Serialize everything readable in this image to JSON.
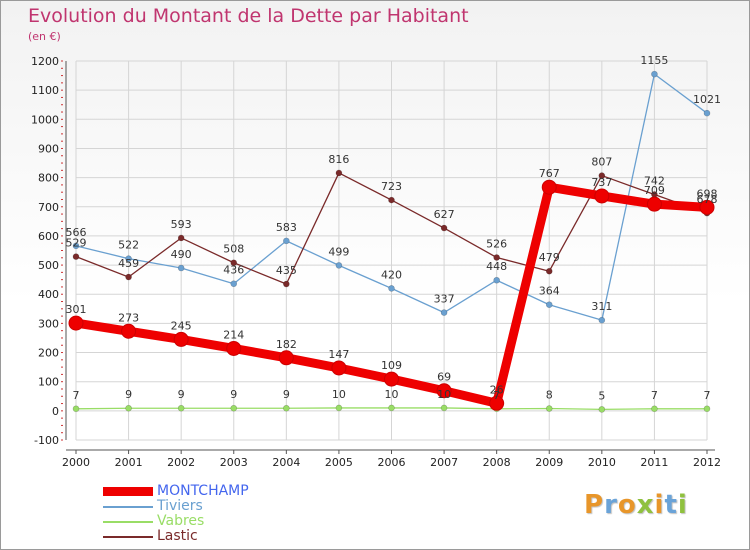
{
  "header": {
    "title": "Evolution du Montant de la Dette par Habitant",
    "subtitle": "(en €)"
  },
  "colors": {
    "title": "#c0356f",
    "grid": "#d5d5d5",
    "axis": "#555555"
  },
  "logo": {
    "text": "Proxiti",
    "letters": [
      {
        "ch": "P",
        "color": "#e8962a"
      },
      {
        "ch": "r",
        "color": "#6aa3d8"
      },
      {
        "ch": "o",
        "color": "#e8962a"
      },
      {
        "ch": "x",
        "color": "#8fc13e"
      },
      {
        "ch": "i",
        "color": "#e8962a"
      },
      {
        "ch": "t",
        "color": "#6aa3d8"
      },
      {
        "ch": "i",
        "color": "#8fc13e"
      }
    ]
  },
  "chart_data": {
    "type": "line",
    "title": "Evolution du Montant de la Dette par Habitant",
    "subtitle": "(en €)",
    "xlabel": "",
    "ylabel": "",
    "x": [
      "2000",
      "2001",
      "2002",
      "2003",
      "2004",
      "2005",
      "2006",
      "2007",
      "2008",
      "2009",
      "2010",
      "2011",
      "2012"
    ],
    "ylim": [
      -100,
      1200
    ],
    "yticks": [
      -100,
      0,
      100,
      200,
      300,
      400,
      500,
      600,
      700,
      800,
      900,
      1000,
      1100,
      1200
    ],
    "grid": true,
    "legend_position": "bottom-left",
    "series": [
      {
        "name": "MONTCHAMP",
        "color": "#ee0000",
        "legend_color": "#4466ee",
        "weight": "heavy",
        "values": [
          301,
          273,
          245,
          214,
          182,
          147,
          109,
          69,
          26,
          767,
          737,
          709,
          698
        ]
      },
      {
        "name": "Tiviers",
        "color": "#6aa0d0",
        "legend_color": "#6aa0d0",
        "weight": "light",
        "values": [
          566,
          522,
          490,
          436,
          583,
          499,
          420,
          337,
          448,
          364,
          311,
          1155,
          1021
        ]
      },
      {
        "name": "Vabres",
        "color": "#99dd66",
        "legend_color": "#99dd66",
        "weight": "light",
        "values": [
          7,
          9,
          9,
          9,
          9,
          10,
          10,
          10,
          7,
          8,
          5,
          7,
          7
        ]
      },
      {
        "name": "Lastic",
        "color": "#7a2a2a",
        "legend_color": "#7a2a2a",
        "weight": "light",
        "values": [
          529,
          459,
          593,
          508,
          435,
          816,
          723,
          627,
          526,
          479,
          807,
          742,
          678
        ]
      }
    ]
  }
}
